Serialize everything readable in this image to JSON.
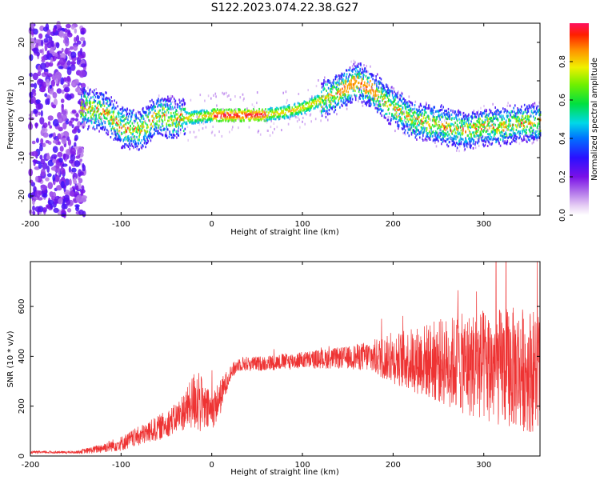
{
  "title": "S122.2023.074.22.38.G27",
  "colors": {
    "snr_line": "#ee3333",
    "background": "#ffffff",
    "axis": "#000000"
  },
  "chart_data": [
    {
      "type": "heatmap",
      "xlabel": "Height of straight line (km)",
      "ylabel": "Frequency (Hz)",
      "xlim": [
        -200,
        362
      ],
      "ylim": [
        -25,
        25
      ],
      "x_ticks": [
        -200,
        -100,
        0,
        100,
        200,
        300
      ],
      "y_ticks": [
        -20,
        -10,
        0,
        10,
        20
      ],
      "colormap": "rainbow (purple to red)",
      "colorbar": {
        "label": "Normalized spectral amplitude",
        "range": [
          0,
          1
        ],
        "ticks": [
          0.0,
          0.2,
          0.4,
          0.6,
          0.8
        ]
      },
      "ridge": {
        "x": [
          -140,
          -120,
          -100,
          -80,
          -60,
          -40,
          -20,
          0,
          20,
          40,
          60,
          80,
          100,
          120,
          140,
          160,
          180,
          200,
          220,
          240,
          260,
          280,
          300,
          320,
          340,
          362
        ],
        "freq": [
          3,
          2,
          -2,
          -3,
          1,
          0,
          0.5,
          1,
          1,
          1,
          1.2,
          1.8,
          3,
          5,
          7,
          10,
          7,
          3,
          0,
          -1,
          -2,
          -3,
          -2,
          -2,
          -1,
          -1
        ]
      }
    },
    {
      "type": "line",
      "xlabel": "Height of straight line (km)",
      "ylabel": "SNR (10 * v/v)",
      "xlim": [
        -200,
        362
      ],
      "ylim": [
        0,
        780
      ],
      "x_ticks": [
        -200,
        -100,
        0,
        100,
        200,
        300
      ],
      "y_ticks": [
        0,
        200,
        400,
        600
      ],
      "series": [
        {
          "x": [
            -200,
            -150,
            -130,
            -100,
            -80,
            -60,
            -40,
            -25,
            -15,
            -10,
            0,
            10,
            20,
            30,
            50,
            100,
            150,
            170,
            200,
            250,
            300,
            340,
            362
          ],
          "mean": [
            15,
            15,
            25,
            50,
            80,
            110,
            150,
            200,
            240,
            190,
            180,
            240,
            330,
            370,
            370,
            385,
            395,
            400,
            390,
            380,
            360,
            350,
            340
          ],
          "amplitude": [
            5,
            5,
            15,
            30,
            40,
            50,
            60,
            90,
            150,
            100,
            80,
            70,
            30,
            30,
            30,
            35,
            45,
            60,
            100,
            170,
            230,
            250,
            250
          ]
        }
      ]
    }
  ]
}
